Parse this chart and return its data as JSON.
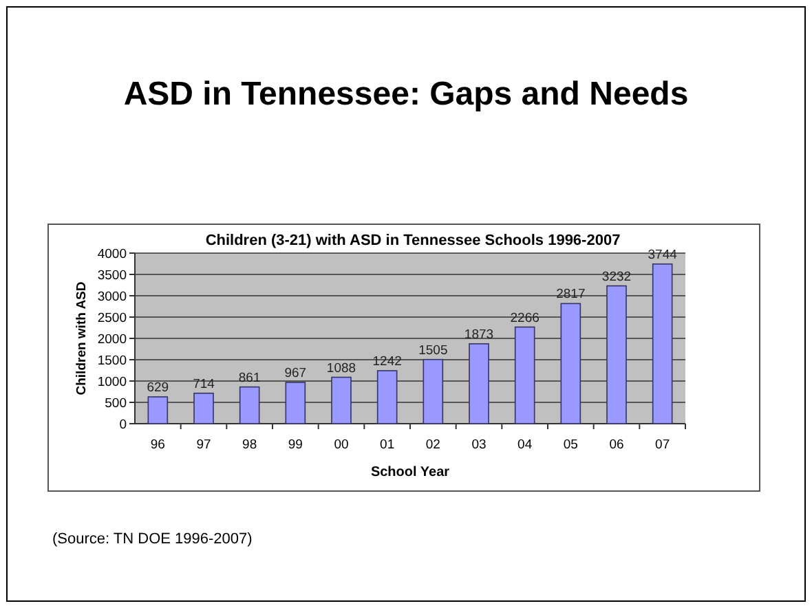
{
  "chart_data": {
    "type": "bar",
    "title": "ASD in Tennessee:  Gaps and Needs",
    "subtitle": "Children (3-21) with ASD in Tennessee Schools 1996-2007",
    "xlabel": "School Year",
    "ylabel": "Children with ASD",
    "categories": [
      "96",
      "97",
      "98",
      "99",
      "00",
      "01",
      "02",
      "03",
      "04",
      "05",
      "06",
      "07"
    ],
    "values": [
      629,
      714,
      861,
      967,
      1088,
      1242,
      1505,
      1873,
      2266,
      2817,
      3232,
      3744
    ],
    "color": "#9999ff",
    "ylim": [
      0,
      4000
    ],
    "yticks": [
      0,
      500,
      1000,
      1500,
      2000,
      2500,
      3000,
      3500,
      4000
    ],
    "grid": "y",
    "data_labels": true,
    "annotations": [
      "(Source:  TN DOE 1996-2007)"
    ]
  }
}
